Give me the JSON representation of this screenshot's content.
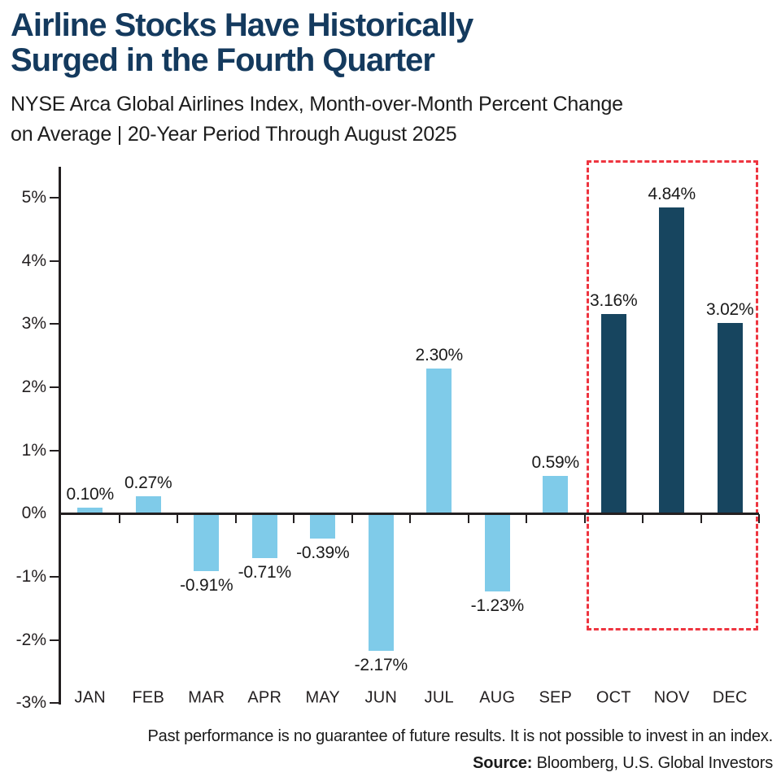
{
  "header": {
    "title_line1": "Airline Stocks Have Historically",
    "title_line2": "Surged in the Fourth Quarter",
    "subtitle_line1": "NYSE Arca Global Airlines Index, Month-over-Month Percent Change",
    "subtitle_line2": "on Average | 20-Year Period Through August 2025"
  },
  "chart_data": {
    "type": "bar",
    "title": "Airline Stocks Have Historically Surged in the Fourth Quarter",
    "subtitle": "NYSE Arca Global Airlines Index, Month-over-Month Percent Change on Average | 20-Year Period Through August 2025",
    "categories": [
      "JAN",
      "FEB",
      "MAR",
      "APR",
      "MAY",
      "JUN",
      "JUL",
      "AUG",
      "SEP",
      "OCT",
      "NOV",
      "DEC"
    ],
    "values": [
      0.1,
      0.27,
      -0.91,
      -0.71,
      -0.39,
      -2.17,
      2.3,
      -1.23,
      0.59,
      3.16,
      4.84,
      3.02
    ],
    "value_labels": [
      "0.10%",
      "0.27%",
      "-0.91%",
      "-0.71%",
      "-0.39%",
      "-2.17%",
      "2.30%",
      "-1.23%",
      "0.59%",
      "3.16%",
      "4.84%",
      "3.02%"
    ],
    "y_ticks": [
      5,
      4,
      3,
      2,
      1,
      0,
      -1,
      -2,
      -3
    ],
    "y_tick_labels": [
      "5%",
      "4%",
      "3%",
      "2%",
      "1%",
      "0%",
      "-1%",
      "-2%",
      "-3%"
    ],
    "ylim": [
      -3,
      5.5
    ],
    "xlabel": "",
    "ylabel": "",
    "grid": false,
    "legend": "none",
    "highlighted_categories": [
      "OCT",
      "NOV",
      "DEC"
    ],
    "colors": {
      "bar": "#7fcbe9",
      "bar_highlight": "#17455f",
      "highlight_box": "#ee3540",
      "axis": "#231f20",
      "title": "#143a5e",
      "text": "#1a1a1a"
    }
  },
  "footer": {
    "disclaimer": "Past performance is no guarantee of future results. It is not possible to invest in an index.",
    "source_label": "Source:",
    "source_text": " Bloomberg, U.S. Global Investors"
  }
}
